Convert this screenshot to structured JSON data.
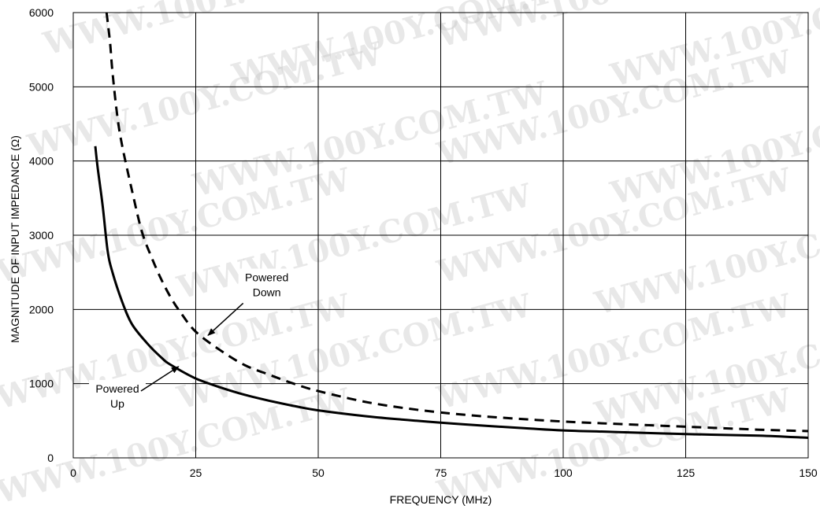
{
  "watermark": "WWW.100Y.COM.TW",
  "chart_data": {
    "type": "line",
    "xlabel": "FREQUENCY (MHz)",
    "ylabel": "MAGNITUDE OF INPUT IMPEDANCE (Ω)",
    "xlim": [
      0,
      150
    ],
    "ylim": [
      0,
      6000
    ],
    "x_ticks": [
      0,
      25,
      50,
      75,
      100,
      125,
      150
    ],
    "y_ticks": [
      0,
      1000,
      2000,
      3000,
      4000,
      5000,
      6000
    ],
    "x_tick_labels": [
      "0",
      "25",
      "50",
      "75",
      "100",
      "125",
      "150"
    ],
    "y_tick_labels": [
      "0",
      "1000",
      "2000",
      "3000",
      "4000",
      "5000",
      "6000"
    ],
    "grid": true,
    "series": [
      {
        "name": "Powered Up",
        "style": "solid",
        "color": "#000000",
        "x": [
          4.5,
          5,
          6,
          7,
          8,
          10,
          12,
          15,
          18,
          20,
          25,
          30,
          35,
          40,
          45,
          50,
          60,
          70,
          80,
          92,
          100,
          110,
          125,
          140,
          150
        ],
        "y": [
          4200,
          3900,
          3400,
          2800,
          2500,
          2100,
          1800,
          1550,
          1350,
          1250,
          1070,
          950,
          850,
          770,
          700,
          640,
          560,
          500,
          450,
          400,
          370,
          350,
          320,
          300,
          270
        ]
      },
      {
        "name": "Powered Down",
        "style": "dashed",
        "color": "#000000",
        "x": [
          6.8,
          7.5,
          8,
          9,
          10,
          12,
          14,
          16,
          18,
          20,
          22,
          25,
          30,
          35,
          40,
          45,
          50,
          60,
          70,
          80,
          90,
          100,
          110,
          125,
          140,
          150
        ],
        "y": [
          6000,
          5600,
          5200,
          4600,
          4200,
          3600,
          3050,
          2700,
          2400,
          2150,
          1950,
          1700,
          1450,
          1250,
          1120,
          1000,
          900,
          750,
          650,
          580,
          530,
          490,
          460,
          420,
          380,
          360
        ]
      }
    ],
    "annotations": [
      {
        "lines": [
          "Powered",
          "Down"
        ],
        "series": "Powered Down",
        "text_at": [
          39.5,
          2380
        ],
        "arrow_to": [
          27.5,
          1650
        ]
      },
      {
        "lines": [
          "Powered",
          "Up"
        ],
        "series": "Powered Up",
        "text_at": [
          9,
          880
        ],
        "arrow_to": [
          21.5,
          1230
        ]
      }
    ]
  }
}
